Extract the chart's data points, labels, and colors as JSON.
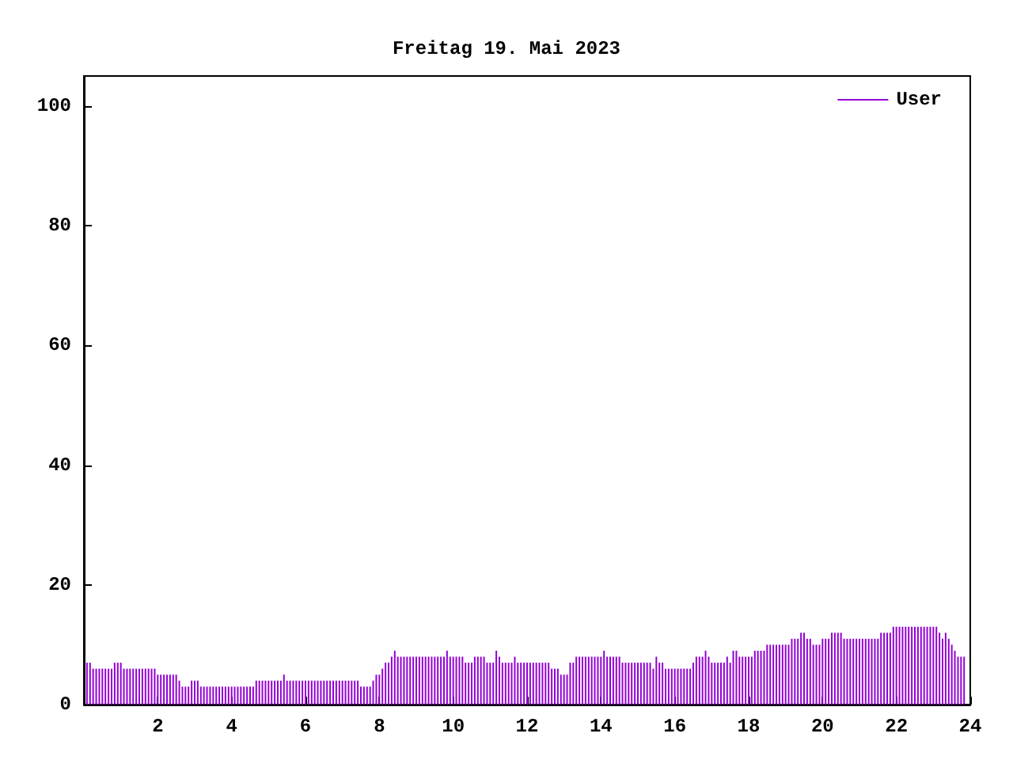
{
  "chart_data": {
    "type": "bar",
    "title": "Freitag 19. Mai 2023",
    "legend": "top right",
    "xlim": [
      0,
      24
    ],
    "xticks": [
      2,
      4,
      6,
      8,
      10,
      12,
      14,
      16,
      18,
      20,
      22,
      24
    ],
    "ylim": [
      0,
      105
    ],
    "yticks": [
      0,
      20,
      40,
      60,
      80,
      100
    ],
    "x": [
      0.083,
      0.167,
      0.25,
      0.333,
      0.417,
      0.5,
      0.583,
      0.667,
      0.75,
      0.833,
      0.917,
      1,
      1.083,
      1.167,
      1.25,
      1.333,
      1.417,
      1.5,
      1.583,
      1.667,
      1.75,
      1.833,
      1.917,
      2,
      2.083,
      2.167,
      2.25,
      2.333,
      2.417,
      2.5,
      2.583,
      2.667,
      2.75,
      2.833,
      2.917,
      3,
      3.083,
      3.167,
      3.25,
      3.333,
      3.417,
      3.5,
      3.583,
      3.667,
      3.75,
      3.833,
      3.917,
      4,
      4.083,
      4.167,
      4.25,
      4.333,
      4.417,
      4.5,
      4.583,
      4.667,
      4.75,
      4.833,
      4.917,
      5,
      5.083,
      5.167,
      5.25,
      5.333,
      5.417,
      5.5,
      5.583,
      5.667,
      5.75,
      5.833,
      5.917,
      6,
      6.083,
      6.167,
      6.25,
      6.333,
      6.417,
      6.5,
      6.583,
      6.667,
      6.75,
      6.833,
      6.917,
      7,
      7.083,
      7.167,
      7.25,
      7.333,
      7.417,
      7.5,
      7.583,
      7.667,
      7.75,
      7.833,
      7.917,
      8,
      8.083,
      8.167,
      8.25,
      8.333,
      8.417,
      8.5,
      8.583,
      8.667,
      8.75,
      8.833,
      8.917,
      9,
      9.083,
      9.167,
      9.25,
      9.333,
      9.417,
      9.5,
      9.583,
      9.667,
      9.75,
      9.833,
      9.917,
      10,
      10.083,
      10.167,
      10.25,
      10.333,
      10.417,
      10.5,
      10.583,
      10.667,
      10.75,
      10.833,
      10.917,
      11,
      11.083,
      11.167,
      11.25,
      11.333,
      11.417,
      11.5,
      11.583,
      11.667,
      11.75,
      11.833,
      11.917,
      12,
      12.083,
      12.167,
      12.25,
      12.333,
      12.417,
      12.5,
      12.583,
      12.667,
      12.75,
      12.833,
      12.917,
      13,
      13.083,
      13.167,
      13.25,
      13.333,
      13.417,
      13.5,
      13.583,
      13.667,
      13.75,
      13.833,
      13.917,
      14,
      14.083,
      14.167,
      14.25,
      14.333,
      14.417,
      14.5,
      14.583,
      14.667,
      14.75,
      14.833,
      14.917,
      15,
      15.083,
      15.167,
      15.25,
      15.333,
      15.417,
      15.5,
      15.583,
      15.667,
      15.75,
      15.833,
      15.917,
      16,
      16.083,
      16.167,
      16.25,
      16.333,
      16.417,
      16.5,
      16.583,
      16.667,
      16.75,
      16.833,
      16.917,
      17,
      17.083,
      17.167,
      17.25,
      17.333,
      17.417,
      17.5,
      17.583,
      17.667,
      17.75,
      17.833,
      17.917,
      18,
      18.083,
      18.167,
      18.25,
      18.333,
      18.417,
      18.5,
      18.583,
      18.667,
      18.75,
      18.833,
      18.917,
      19,
      19.083,
      19.167,
      19.25,
      19.333,
      19.417,
      19.5,
      19.583,
      19.667,
      19.75,
      19.833,
      19.917,
      20,
      20.083,
      20.167,
      20.25,
      20.333,
      20.417,
      20.5,
      20.583,
      20.667,
      20.75,
      20.833,
      20.917,
      21,
      21.083,
      21.167,
      21.25,
      21.333,
      21.417,
      21.5,
      21.583,
      21.667,
      21.75,
      21.833,
      21.917,
      22,
      22.083,
      22.167,
      22.25,
      22.333,
      22.417,
      22.5,
      22.583,
      22.667,
      22.75,
      22.833,
      22.917,
      23,
      23.083,
      23.167,
      23.25,
      23.333,
      23.417,
      23.5,
      23.583,
      23.667,
      23.75,
      23.833
    ],
    "series": [
      {
        "name": "User",
        "color": "#9400d3",
        "values": [
          7,
          7,
          6,
          6,
          6,
          6,
          6,
          6,
          6,
          7,
          7,
          7,
          6,
          6,
          6,
          6,
          6,
          6,
          6,
          6,
          6,
          6,
          6,
          5,
          5,
          5,
          5,
          5,
          5,
          5,
          4,
          3,
          3,
          3,
          4,
          4,
          4,
          3,
          3,
          3,
          3,
          3,
          3,
          3,
          3,
          3,
          3,
          3,
          3,
          3,
          3,
          3,
          3,
          3,
          3,
          4,
          4,
          4,
          4,
          4,
          4,
          4,
          4,
          4,
          5,
          4,
          4,
          4,
          4,
          4,
          4,
          4,
          4,
          4,
          4,
          4,
          4,
          4,
          4,
          4,
          4,
          4,
          4,
          4,
          4,
          4,
          4,
          4,
          4,
          3,
          3,
          3,
          3,
          4,
          5,
          5,
          6,
          7,
          7,
          8,
          9,
          8,
          8,
          8,
          8,
          8,
          8,
          8,
          8,
          8,
          8,
          8,
          8,
          8,
          8,
          8,
          8,
          9,
          8,
          8,
          8,
          8,
          8,
          7,
          7,
          7,
          8,
          8,
          8,
          8,
          7,
          7,
          7,
          9,
          8,
          7,
          7,
          7,
          7,
          8,
          7,
          7,
          7,
          7,
          7,
          7,
          7,
          7,
          7,
          7,
          7,
          6,
          6,
          6,
          5,
          5,
          5,
          7,
          7,
          8,
          8,
          8,
          8,
          8,
          8,
          8,
          8,
          8,
          9,
          8,
          8,
          8,
          8,
          8,
          7,
          7,
          7,
          7,
          7,
          7,
          7,
          7,
          7,
          7,
          6,
          8,
          7,
          7,
          6,
          6,
          6,
          6,
          6,
          6,
          6,
          6,
          6,
          7,
          8,
          8,
          8,
          9,
          8,
          7,
          7,
          7,
          7,
          7,
          8,
          7,
          9,
          9,
          8,
          8,
          8,
          8,
          8,
          9,
          9,
          9,
          9,
          10,
          10,
          10,
          10,
          10,
          10,
          10,
          10,
          11,
          11,
          11,
          12,
          12,
          11,
          11,
          10,
          10,
          10,
          11,
          11,
          11,
          12,
          12,
          12,
          12,
          11,
          11,
          11,
          11,
          11,
          11,
          11,
          11,
          11,
          11,
          11,
          11,
          12,
          12,
          12,
          12,
          13,
          13,
          13,
          13,
          13,
          13,
          13,
          13,
          13,
          13,
          13,
          13,
          13,
          13,
          13,
          12,
          11,
          12,
          11,
          10,
          9,
          8,
          8,
          8
        ]
      }
    ]
  }
}
